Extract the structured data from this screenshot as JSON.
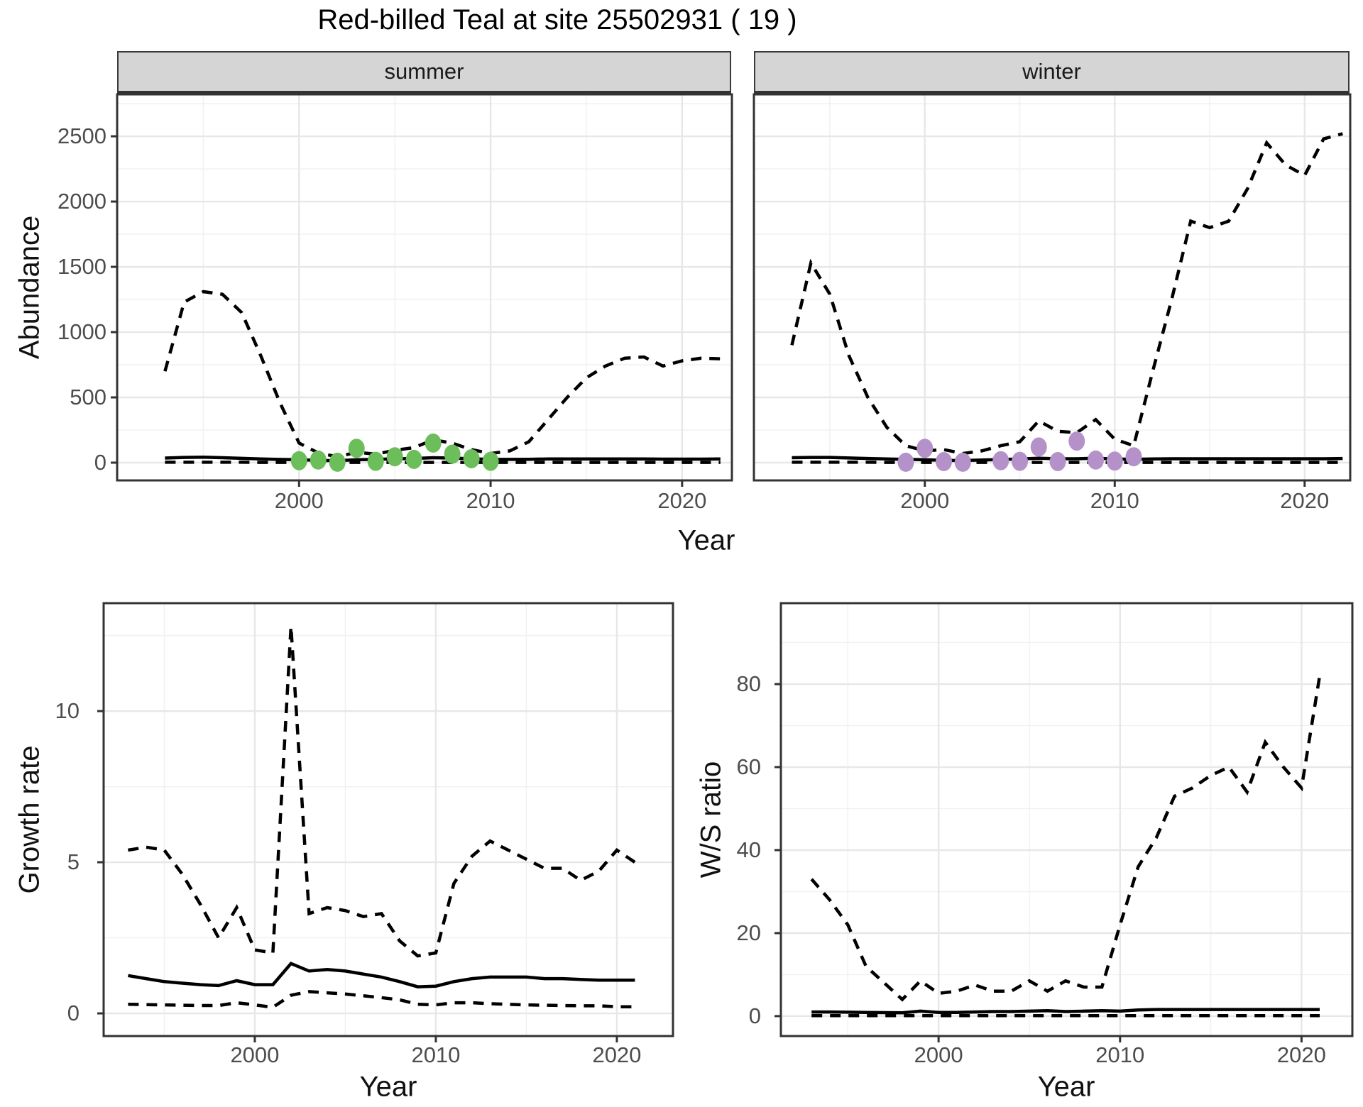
{
  "title": "Red-billed Teal at site 25502931 ( 19 )",
  "facets": {
    "summer": "summer",
    "winter": "winter"
  },
  "axis_titles": {
    "x": "Year",
    "abundance": "Abundance",
    "growth": "Growth rate",
    "ws": "W/S ratio"
  },
  "colors": {
    "summer_points": "#6BBE5A",
    "winter_points": "#B491C8",
    "line": "#000000",
    "strip_bg": "#D5D5D5",
    "grid_major": "#E7E7E7",
    "grid_minor": "#F1F1F1",
    "panel_border": "#333333",
    "axis_text": "#4d4d4d"
  },
  "chart_data": [
    {
      "type": "line",
      "facet_label": "summer",
      "ylabel": "Abundance",
      "xlabel": "Year",
      "xticks": [
        2000,
        2010,
        2020
      ],
      "yticks": [
        0,
        500,
        1000,
        1500,
        2000,
        2500
      ],
      "xlim": [
        1990.5,
        2022.6
      ],
      "ylim": [
        -136,
        2821
      ],
      "grid": true,
      "legend_position": "none",
      "years": [
        1993,
        1994,
        1995,
        1996,
        1997,
        1998,
        1999,
        2000,
        2001,
        2002,
        2003,
        2004,
        2005,
        2006,
        2007,
        2008,
        2009,
        2010,
        2011,
        2012,
        2013,
        2014,
        2015,
        2016,
        2017,
        2018,
        2019,
        2020,
        2021,
        2022
      ],
      "series": [
        {
          "name": "upper_ci",
          "line": "dashed",
          "values": [
            700,
            1230,
            1310,
            1290,
            1150,
            820,
            460,
            150,
            75,
            45,
            80,
            65,
            95,
            115,
            175,
            150,
            100,
            70,
            90,
            160,
            330,
            500,
            650,
            740,
            800,
            810,
            740,
            780,
            800,
            795
          ]
        },
        {
          "name": "median",
          "line": "solid",
          "values": [
            35,
            40,
            42,
            38,
            33,
            28,
            25,
            22,
            18,
            15,
            22,
            25,
            30,
            32,
            38,
            35,
            30,
            25,
            25,
            26,
            28,
            28,
            28,
            28,
            28,
            28,
            27,
            27,
            27,
            28
          ]
        },
        {
          "name": "lower_ci",
          "line": "dashed",
          "values": [
            3,
            3,
            3,
            3,
            3,
            2,
            2,
            2,
            2,
            2,
            2,
            2,
            2,
            2,
            2,
            2,
            2,
            2,
            2,
            2,
            2,
            2,
            2,
            2,
            2,
            2,
            2,
            2,
            2,
            2
          ]
        }
      ],
      "points": {
        "name": "observed_counts_summer",
        "color": "#6BBE5A",
        "years": [
          2000,
          2001,
          2002,
          2003,
          2004,
          2005,
          2006,
          2007,
          2008,
          2009,
          2010
        ],
        "values": [
          15,
          20,
          3,
          110,
          10,
          45,
          25,
          150,
          65,
          30,
          10
        ]
      }
    },
    {
      "type": "line",
      "facet_label": "winter",
      "ylabel": "Abundance",
      "xlabel": "Year",
      "xticks": [
        2000,
        2010,
        2020
      ],
      "yticks": [
        0,
        500,
        1000,
        1500,
        2000,
        2500
      ],
      "xlim": [
        1991.0,
        2022.4
      ],
      "ylim": [
        -136,
        2821
      ],
      "grid": true,
      "legend_position": "none",
      "years": [
        1993,
        1994,
        1995,
        1996,
        1997,
        1998,
        1999,
        2000,
        2001,
        2002,
        2003,
        2004,
        2005,
        2006,
        2007,
        2008,
        2009,
        2010,
        2011,
        2012,
        2013,
        2014,
        2015,
        2016,
        2017,
        2018,
        2019,
        2020,
        2021,
        2022
      ],
      "series": [
        {
          "name": "upper_ci",
          "line": "dashed",
          "values": [
            900,
            1530,
            1290,
            820,
            500,
            270,
            130,
            90,
            100,
            70,
            90,
            130,
            160,
            320,
            240,
            230,
            330,
            180,
            130,
            700,
            1250,
            1850,
            1800,
            1850,
            2100,
            2450,
            2280,
            2200,
            2480,
            2520
          ]
        },
        {
          "name": "median",
          "line": "solid",
          "values": [
            38,
            40,
            40,
            36,
            32,
            28,
            25,
            22,
            18,
            16,
            20,
            24,
            28,
            34,
            30,
            30,
            34,
            28,
            26,
            28,
            30,
            30,
            30,
            30,
            30,
            30,
            30,
            30,
            30,
            32
          ]
        },
        {
          "name": "lower_ci",
          "line": "dashed",
          "values": [
            3,
            3,
            3,
            3,
            3,
            2,
            2,
            2,
            2,
            2,
            2,
            2,
            2,
            2,
            2,
            2,
            2,
            2,
            2,
            2,
            2,
            2,
            2,
            2,
            2,
            2,
            2,
            2,
            2,
            2
          ]
        }
      ],
      "points": {
        "name": "observed_counts_winter",
        "color": "#B491C8",
        "years": [
          1999,
          2000,
          2001,
          2002,
          2004,
          2005,
          2006,
          2007,
          2008,
          2009,
          2010,
          2011
        ],
        "values": [
          3,
          110,
          8,
          3,
          15,
          10,
          120,
          8,
          165,
          20,
          12,
          45
        ]
      }
    },
    {
      "type": "line",
      "facet_label": "",
      "ylabel": "Growth rate",
      "xlabel": "Year",
      "xticks": [
        2000,
        2010,
        2020
      ],
      "yticks": [
        0,
        5,
        10
      ],
      "xlim": [
        1991.65,
        2023.1
      ],
      "ylim": [
        -0.75,
        13.57
      ],
      "grid": true,
      "legend_position": "none",
      "years": [
        1993,
        1994,
        1995,
        1996,
        1997,
        1998,
        1999,
        2000,
        2001,
        2002,
        2003,
        2004,
        2005,
        2006,
        2007,
        2008,
        2009,
        2010,
        2011,
        2012,
        2013,
        2014,
        2015,
        2016,
        2017,
        2018,
        2019,
        2020,
        2021
      ],
      "series": [
        {
          "name": "upper_ci",
          "line": "dashed",
          "values": [
            5.4,
            5.5,
            5.4,
            4.6,
            3.6,
            2.5,
            3.5,
            2.1,
            2.0,
            12.8,
            3.3,
            3.5,
            3.4,
            3.2,
            3.3,
            2.4,
            1.9,
            2.0,
            4.3,
            5.2,
            5.7,
            5.4,
            5.1,
            4.8,
            4.8,
            4.4,
            4.7,
            5.4,
            5.0
          ]
        },
        {
          "name": "median",
          "line": "solid",
          "values": [
            1.25,
            1.15,
            1.05,
            1.0,
            0.95,
            0.92,
            1.08,
            0.95,
            0.95,
            1.65,
            1.4,
            1.45,
            1.4,
            1.3,
            1.2,
            1.05,
            0.88,
            0.9,
            1.05,
            1.15,
            1.2,
            1.2,
            1.2,
            1.15,
            1.15,
            1.12,
            1.1,
            1.1,
            1.1
          ]
        },
        {
          "name": "lower_ci",
          "line": "dashed",
          "values": [
            0.3,
            0.29,
            0.28,
            0.27,
            0.26,
            0.26,
            0.35,
            0.28,
            0.2,
            0.6,
            0.72,
            0.68,
            0.64,
            0.58,
            0.52,
            0.45,
            0.3,
            0.28,
            0.35,
            0.35,
            0.32,
            0.3,
            0.28,
            0.27,
            0.26,
            0.25,
            0.25,
            0.22,
            0.22
          ]
        }
      ],
      "points": null
    },
    {
      "type": "line",
      "facet_label": "",
      "ylabel": "W/S ratio",
      "xlabel": "Year",
      "xticks": [
        2000,
        2010,
        2020
      ],
      "yticks": [
        0,
        20,
        40,
        60,
        80
      ],
      "xlim": [
        1991.31,
        2022.8
      ],
      "ylim": [
        -4.8,
        99.5
      ],
      "grid": true,
      "legend_position": "none",
      "years": [
        1993,
        1994,
        1995,
        1996,
        1997,
        1998,
        1999,
        2000,
        2001,
        2002,
        2003,
        2004,
        2005,
        2006,
        2007,
        2008,
        2009,
        2010,
        2011,
        2012,
        2013,
        2014,
        2015,
        2016,
        2017,
        2018,
        2019,
        2020,
        2021
      ],
      "series": [
        {
          "name": "upper_ci",
          "line": "dashed",
          "values": [
            33,
            28,
            22,
            12,
            8,
            4,
            8.5,
            5.5,
            6,
            7.5,
            6,
            6,
            8.5,
            6,
            8.5,
            7,
            7,
            22,
            36,
            43,
            53,
            55,
            58,
            60,
            54,
            66,
            60,
            55,
            82
          ]
        },
        {
          "name": "median",
          "line": "solid",
          "values": [
            1.0,
            1.0,
            0.95,
            0.9,
            0.85,
            0.8,
            1.2,
            0.9,
            0.9,
            1.0,
            1.1,
            1.1,
            1.2,
            1.3,
            1.1,
            1.2,
            1.3,
            1.2,
            1.5,
            1.6,
            1.6,
            1.6,
            1.6,
            1.6,
            1.6,
            1.6,
            1.6,
            1.6,
            1.6
          ]
        },
        {
          "name": "lower_ci",
          "line": "dashed",
          "values": [
            0.1,
            0.1,
            0.1,
            0.1,
            0.1,
            0.1,
            0.1,
            0.1,
            0.1,
            0.1,
            0.1,
            0.1,
            0.1,
            0.1,
            0.1,
            0.1,
            0.1,
            0.1,
            0.1,
            0.1,
            0.1,
            0.1,
            0.1,
            0.1,
            0.1,
            0.1,
            0.1,
            0.1,
            0.1
          ]
        }
      ],
      "points": null
    }
  ]
}
